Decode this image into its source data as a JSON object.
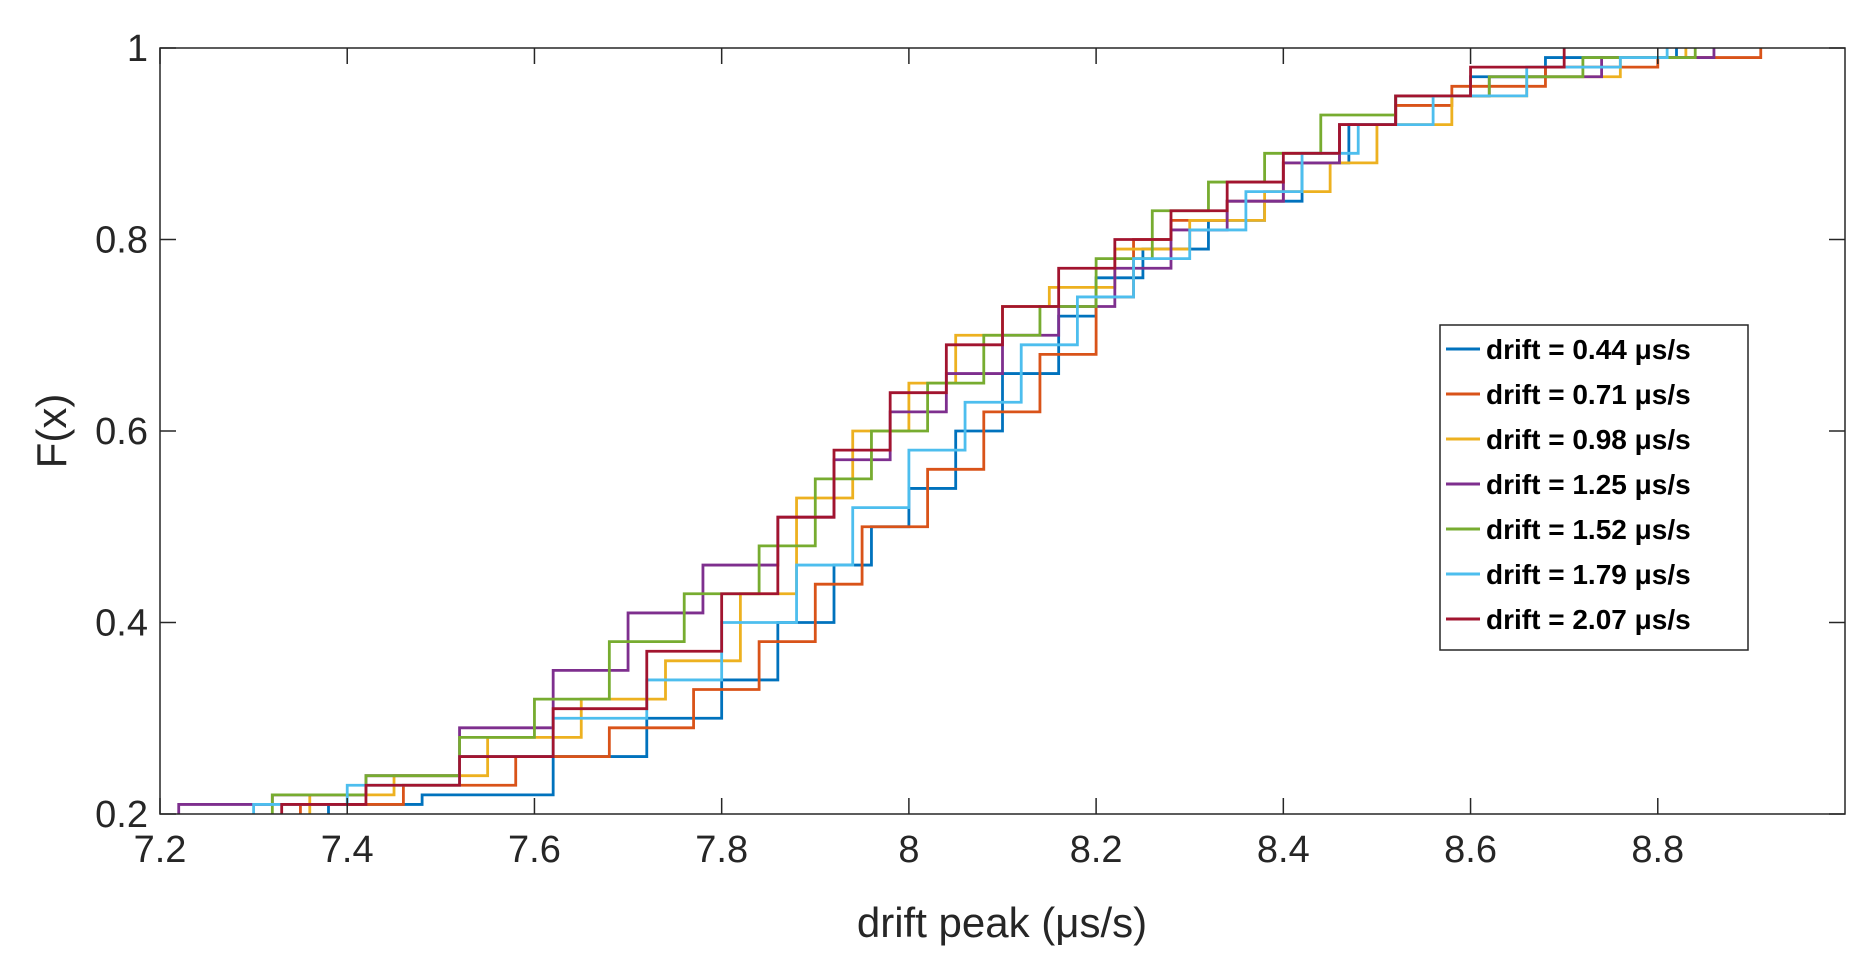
{
  "chart_data": {
    "type": "line",
    "step": true,
    "xlabel": "drift peak (μs/s)",
    "ylabel": "F(x)",
    "xlim": [
      7.2,
      9.0
    ],
    "ylim": [
      0.2,
      1.0
    ],
    "x_ticks": [
      7.2,
      7.4,
      7.6,
      7.8,
      8.0,
      8.2,
      8.4,
      8.6,
      8.8
    ],
    "x_tick_labels": [
      "7.2",
      "7.4",
      "7.6",
      "7.8",
      "8",
      "8.2",
      "8.4",
      "8.6",
      "8.8"
    ],
    "y_ticks": [
      0.2,
      0.4,
      0.6,
      0.8,
      1.0
    ],
    "y_tick_labels": [
      "0.2",
      "0.4",
      "0.6",
      "0.8",
      "1"
    ],
    "grid": false,
    "legend_position": "right",
    "series": [
      {
        "name": "drift = 0.44 μs/s",
        "color": "#0072BD",
        "x": [
          7.38,
          7.48,
          7.62,
          7.72,
          7.8,
          7.86,
          7.92,
          7.96,
          8.0,
          8.05,
          8.1,
          8.16,
          8.2,
          8.25,
          8.32,
          8.38,
          8.42,
          8.47,
          8.52,
          8.6,
          8.68,
          8.82
        ],
        "y": [
          0.21,
          0.22,
          0.26,
          0.3,
          0.34,
          0.4,
          0.46,
          0.5,
          0.54,
          0.6,
          0.66,
          0.72,
          0.76,
          0.79,
          0.82,
          0.84,
          0.88,
          0.92,
          0.95,
          0.97,
          0.99,
          1.0
        ]
      },
      {
        "name": "drift = 0.71 μs/s",
        "color": "#D95319",
        "x": [
          7.35,
          7.46,
          7.58,
          7.68,
          7.77,
          7.84,
          7.9,
          7.95,
          8.02,
          8.08,
          8.14,
          8.2,
          8.24,
          8.28,
          8.34,
          8.4,
          8.46,
          8.52,
          8.58,
          8.68,
          8.8,
          8.91
        ],
        "y": [
          0.21,
          0.23,
          0.26,
          0.29,
          0.33,
          0.38,
          0.44,
          0.5,
          0.56,
          0.62,
          0.68,
          0.74,
          0.8,
          0.82,
          0.84,
          0.88,
          0.92,
          0.94,
          0.96,
          0.98,
          0.99,
          1.0
        ]
      },
      {
        "name": "drift = 0.98 μs/s",
        "color": "#EDB120",
        "x": [
          7.36,
          7.45,
          7.55,
          7.65,
          7.74,
          7.82,
          7.88,
          7.94,
          8.0,
          8.05,
          8.1,
          8.15,
          8.22,
          8.3,
          8.38,
          8.45,
          8.5,
          8.58,
          8.66,
          8.76,
          8.83
        ],
        "y": [
          0.22,
          0.24,
          0.28,
          0.32,
          0.36,
          0.43,
          0.53,
          0.6,
          0.65,
          0.7,
          0.73,
          0.75,
          0.79,
          0.82,
          0.85,
          0.88,
          0.92,
          0.95,
          0.97,
          0.99,
          1.0
        ]
      },
      {
        "name": "drift = 1.25 μs/s",
        "color": "#7E2F8E",
        "x": [
          7.22,
          7.32,
          7.42,
          7.52,
          7.62,
          7.7,
          7.78,
          7.86,
          7.92,
          7.98,
          8.04,
          8.1,
          8.16,
          8.22,
          8.28,
          8.34,
          8.4,
          8.46,
          8.52,
          8.62,
          8.74,
          8.86
        ],
        "y": [
          0.21,
          0.22,
          0.24,
          0.29,
          0.35,
          0.41,
          0.46,
          0.51,
          0.57,
          0.62,
          0.66,
          0.7,
          0.73,
          0.77,
          0.81,
          0.84,
          0.88,
          0.92,
          0.95,
          0.97,
          0.99,
          1.0
        ]
      },
      {
        "name": "drift = 1.52 μs/s",
        "color": "#77AC30",
        "x": [
          7.32,
          7.42,
          7.52,
          7.6,
          7.68,
          7.76,
          7.84,
          7.9,
          7.96,
          8.02,
          8.08,
          8.14,
          8.2,
          8.26,
          8.32,
          8.38,
          8.44,
          8.52,
          8.62,
          8.72,
          8.84
        ],
        "y": [
          0.22,
          0.24,
          0.28,
          0.32,
          0.38,
          0.43,
          0.48,
          0.55,
          0.6,
          0.65,
          0.7,
          0.73,
          0.78,
          0.83,
          0.86,
          0.89,
          0.93,
          0.95,
          0.97,
          0.99,
          1.0
        ]
      },
      {
        "name": "drift = 1.79 μs/s",
        "color": "#4DBEEE",
        "x": [
          7.3,
          7.4,
          7.52,
          7.62,
          7.72,
          7.8,
          7.88,
          7.94,
          8.0,
          8.06,
          8.12,
          8.18,
          8.24,
          8.3,
          8.36,
          8.42,
          8.48,
          8.56,
          8.66,
          8.76,
          8.81
        ],
        "y": [
          0.21,
          0.23,
          0.26,
          0.3,
          0.34,
          0.4,
          0.46,
          0.52,
          0.58,
          0.63,
          0.69,
          0.74,
          0.78,
          0.81,
          0.85,
          0.89,
          0.92,
          0.95,
          0.98,
          0.99,
          1.0
        ]
      },
      {
        "name": "drift = 2.07 μs/s",
        "color": "#A2142F",
        "x": [
          7.33,
          7.42,
          7.52,
          7.62,
          7.72,
          7.8,
          7.86,
          7.92,
          7.98,
          8.04,
          8.1,
          8.16,
          8.22,
          8.28,
          8.34,
          8.4,
          8.46,
          8.52,
          8.6,
          8.7
        ],
        "y": [
          0.21,
          0.23,
          0.26,
          0.31,
          0.37,
          0.43,
          0.51,
          0.58,
          0.64,
          0.69,
          0.73,
          0.77,
          0.8,
          0.83,
          0.86,
          0.89,
          0.92,
          0.95,
          0.98,
          1.0
        ]
      }
    ]
  }
}
